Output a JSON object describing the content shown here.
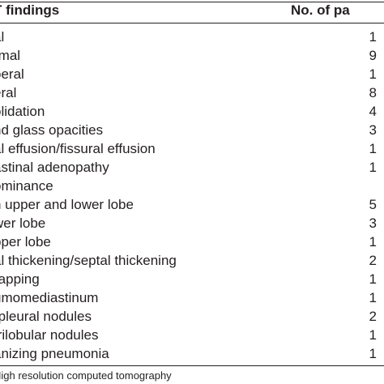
{
  "table": {
    "header": {
      "findings": "T findings",
      "patients": "No. of pa"
    },
    "rows": [
      {
        "label": "al",
        "value": "1"
      },
      {
        "label": "rmal",
        "value": "9"
      },
      {
        "label": "oeral",
        "value": "1"
      },
      {
        "label": "eral",
        "value": "8"
      },
      {
        "label": "olidation",
        "value": "4"
      },
      {
        "label": "nd glass opacities",
        "value": "3"
      },
      {
        "label": "al effusion/fissural effusion",
        "value": "1"
      },
      {
        "label": "astinal adenopathy",
        "value": "1"
      },
      {
        "label": "ominance",
        "value": ""
      },
      {
        "label": "n upper and lower lobe",
        "value": "5"
      },
      {
        "label": "wer lobe",
        "value": "3"
      },
      {
        "label": "pper lobe",
        "value": "1"
      },
      {
        "label": "al thickening/septal thickening",
        "value": "2"
      },
      {
        "label": "rapping",
        "value": "1"
      },
      {
        "label": "umomediastinum",
        "value": "1"
      },
      {
        "label": "-pleural nodules",
        "value": "2"
      },
      {
        "label": "trilobular nodules",
        "value": "1"
      },
      {
        "label": "anizing pneumonia",
        "value": "1"
      }
    ],
    "footnote": "High resolution computed tomography"
  }
}
